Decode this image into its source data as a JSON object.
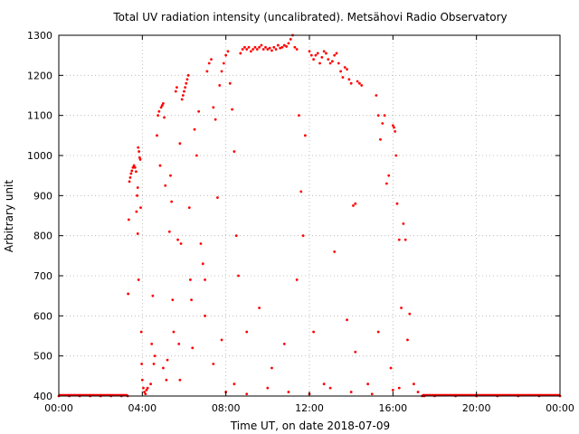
{
  "chart_data": {
    "type": "scatter",
    "title": "Total UV radiation intensity (uncalibrated). Metsähovi Radio Observatory",
    "xlabel": "Time UT, on date 2018-07-09",
    "ylabel": "Arbitrary unit",
    "x_unit": "hours UT",
    "xlim": [
      0,
      24
    ],
    "ylim": [
      400,
      1300
    ],
    "x_ticks": [
      0,
      4,
      8,
      12,
      16,
      20,
      24
    ],
    "x_tick_labels": [
      "00:00",
      "04:00",
      "08:00",
      "12:00",
      "16:00",
      "20:00",
      "00:00"
    ],
    "y_ticks": [
      400,
      500,
      600,
      700,
      800,
      900,
      1000,
      1100,
      1200,
      1300
    ],
    "y_tick_labels": [
      "400",
      "500",
      "600",
      "700",
      "800",
      "900",
      "1000",
      "1100",
      "1200",
      "1300"
    ],
    "grid": true,
    "legend": "none",
    "color": "#ff0000",
    "series": [
      {
        "values": [
          [
            0.0,
            400
          ],
          [
            0.5,
            400
          ],
          [
            1.0,
            400
          ],
          [
            1.5,
            400
          ],
          [
            2.0,
            400
          ],
          [
            2.5,
            400
          ],
          [
            3.0,
            400
          ],
          [
            3.3,
            400
          ],
          [
            3.32,
            655
          ],
          [
            3.35,
            840
          ],
          [
            3.38,
            935
          ],
          [
            3.42,
            945
          ],
          [
            3.46,
            955
          ],
          [
            3.5,
            962
          ],
          [
            3.55,
            970
          ],
          [
            3.6,
            975
          ],
          [
            3.65,
            970
          ],
          [
            3.7,
            960
          ],
          [
            3.72,
            860
          ],
          [
            3.75,
            900
          ],
          [
            3.78,
            920
          ],
          [
            3.8,
            1020
          ],
          [
            3.84,
            1010
          ],
          [
            3.87,
            995
          ],
          [
            3.9,
            990
          ],
          [
            3.92,
            870
          ],
          [
            3.95,
            560
          ],
          [
            3.97,
            480
          ],
          [
            3.78,
            805
          ],
          [
            3.82,
            690
          ],
          [
            4.0,
            440
          ],
          [
            4.05,
            420
          ],
          [
            4.1,
            410
          ],
          [
            4.15,
            405
          ],
          [
            4.2,
            415
          ],
          [
            4.25,
            420
          ],
          [
            4.4,
            430
          ],
          [
            4.45,
            530
          ],
          [
            4.5,
            650
          ],
          [
            4.55,
            480
          ],
          [
            4.6,
            500
          ],
          [
            4.7,
            1050
          ],
          [
            4.75,
            1100
          ],
          [
            4.8,
            1110
          ],
          [
            4.85,
            975
          ],
          [
            4.9,
            1120
          ],
          [
            4.95,
            1125
          ],
          [
            5.0,
            1130
          ],
          [
            5.05,
            1095
          ],
          [
            5.1,
            925
          ],
          [
            5.15,
            440
          ],
          [
            5.2,
            490
          ],
          [
            5.3,
            810
          ],
          [
            5.35,
            950
          ],
          [
            5.4,
            885
          ],
          [
            5.45,
            640
          ],
          [
            5.5,
            560
          ],
          [
            5.6,
            1160
          ],
          [
            5.65,
            1170
          ],
          [
            5.7,
            790
          ],
          [
            5.75,
            530
          ],
          [
            5.8,
            1030
          ],
          [
            5.85,
            780
          ],
          [
            5.9,
            1140
          ],
          [
            5.95,
            1150
          ],
          [
            6.0,
            1160
          ],
          [
            6.05,
            1170
          ],
          [
            6.1,
            1180
          ],
          [
            6.15,
            1190
          ],
          [
            6.2,
            1200
          ],
          [
            6.25,
            870
          ],
          [
            6.3,
            690
          ],
          [
            6.35,
            640
          ],
          [
            6.5,
            1065
          ],
          [
            6.6,
            1000
          ],
          [
            6.7,
            1110
          ],
          [
            6.8,
            780
          ],
          [
            6.9,
            730
          ],
          [
            7.0,
            690
          ],
          [
            7.1,
            1210
          ],
          [
            7.2,
            1230
          ],
          [
            7.3,
            1240
          ],
          [
            7.4,
            1120
          ],
          [
            7.5,
            1090
          ],
          [
            7.6,
            895
          ],
          [
            7.7,
            1175
          ],
          [
            7.8,
            1210
          ],
          [
            7.9,
            1230
          ],
          [
            8.0,
            1250
          ],
          [
            8.1,
            1260
          ],
          [
            8.2,
            1180
          ],
          [
            8.3,
            1115
          ],
          [
            8.4,
            1010
          ],
          [
            8.5,
            800
          ],
          [
            8.6,
            700
          ],
          [
            8.7,
            1255
          ],
          [
            8.8,
            1265
          ],
          [
            8.9,
            1270
          ],
          [
            9.0,
            1265
          ],
          [
            9.1,
            1270
          ],
          [
            9.2,
            1260
          ],
          [
            9.3,
            1265
          ],
          [
            9.4,
            1270
          ],
          [
            9.5,
            1265
          ],
          [
            9.6,
            1270
          ],
          [
            9.7,
            1275
          ],
          [
            9.8,
            1265
          ],
          [
            9.9,
            1270
          ],
          [
            10.0,
            1265
          ],
          [
            10.1,
            1268
          ],
          [
            10.2,
            1262
          ],
          [
            10.3,
            1270
          ],
          [
            10.4,
            1265
          ],
          [
            10.5,
            1275
          ],
          [
            10.6,
            1268
          ],
          [
            10.7,
            1270
          ],
          [
            10.8,
            1275
          ],
          [
            10.9,
            1272
          ],
          [
            11.0,
            1280
          ],
          [
            11.1,
            1290
          ],
          [
            11.2,
            1300
          ],
          [
            11.3,
            1270
          ],
          [
            11.4,
            1265
          ],
          [
            11.5,
            1100
          ],
          [
            11.6,
            910
          ],
          [
            11.7,
            800
          ],
          [
            11.8,
            1050
          ],
          [
            12.0,
            1260
          ],
          [
            12.1,
            1250
          ],
          [
            12.2,
            1240
          ],
          [
            12.3,
            1250
          ],
          [
            12.4,
            1255
          ],
          [
            12.5,
            1230
          ],
          [
            12.6,
            1245
          ],
          [
            12.7,
            1260
          ],
          [
            12.8,
            1255
          ],
          [
            12.9,
            1240
          ],
          [
            13.0,
            1230
          ],
          [
            13.1,
            1235
          ],
          [
            13.2,
            1250
          ],
          [
            13.3,
            1255
          ],
          [
            13.4,
            1230
          ],
          [
            13.5,
            1210
          ],
          [
            13.6,
            1195
          ],
          [
            13.7,
            1220
          ],
          [
            13.8,
            1215
          ],
          [
            13.9,
            1190
          ],
          [
            14.0,
            1180
          ],
          [
            14.1,
            875
          ],
          [
            14.2,
            880
          ],
          [
            14.3,
            1185
          ],
          [
            14.4,
            1180
          ],
          [
            14.5,
            1175
          ],
          [
            15.2,
            1150
          ],
          [
            15.3,
            1100
          ],
          [
            15.4,
            1040
          ],
          [
            15.5,
            1080
          ],
          [
            15.6,
            1100
          ],
          [
            15.7,
            930
          ],
          [
            15.8,
            950
          ],
          [
            16.0,
            1075
          ],
          [
            16.05,
            1070
          ],
          [
            16.1,
            1060
          ],
          [
            16.15,
            1000
          ],
          [
            16.2,
            880
          ],
          [
            16.3,
            790
          ],
          [
            16.4,
            620
          ],
          [
            16.5,
            830
          ],
          [
            16.6,
            790
          ],
          [
            16.7,
            540
          ],
          [
            16.8,
            605
          ],
          [
            17.0,
            430
          ],
          [
            17.2,
            410
          ],
          [
            17.4,
            400
          ],
          [
            5.0,
            470
          ],
          [
            5.8,
            440
          ],
          [
            6.4,
            520
          ],
          [
            7.0,
            600
          ],
          [
            7.4,
            480
          ],
          [
            7.8,
            540
          ],
          [
            8.4,
            430
          ],
          [
            9.0,
            560
          ],
          [
            9.6,
            620
          ],
          [
            10.2,
            470
          ],
          [
            10.8,
            530
          ],
          [
            11.4,
            690
          ],
          [
            12.2,
            560
          ],
          [
            12.7,
            430
          ],
          [
            13.2,
            760
          ],
          [
            13.8,
            590
          ],
          [
            14.2,
            510
          ],
          [
            14.8,
            430
          ],
          [
            15.3,
            560
          ],
          [
            15.9,
            470
          ],
          [
            16.3,
            420
          ],
          [
            8.0,
            410
          ],
          [
            9.0,
            405
          ],
          [
            10.0,
            420
          ],
          [
            11.0,
            410
          ],
          [
            12.0,
            405
          ],
          [
            13.0,
            420
          ],
          [
            14.0,
            410
          ],
          [
            15.0,
            405
          ],
          [
            16.0,
            415
          ],
          [
            17.5,
            400
          ],
          [
            18.0,
            400
          ],
          [
            19.0,
            400
          ],
          [
            20.0,
            400
          ],
          [
            21.0,
            400
          ],
          [
            22.0,
            400
          ],
          [
            23.0,
            400
          ],
          [
            24.0,
            400
          ]
        ]
      }
    ]
  }
}
